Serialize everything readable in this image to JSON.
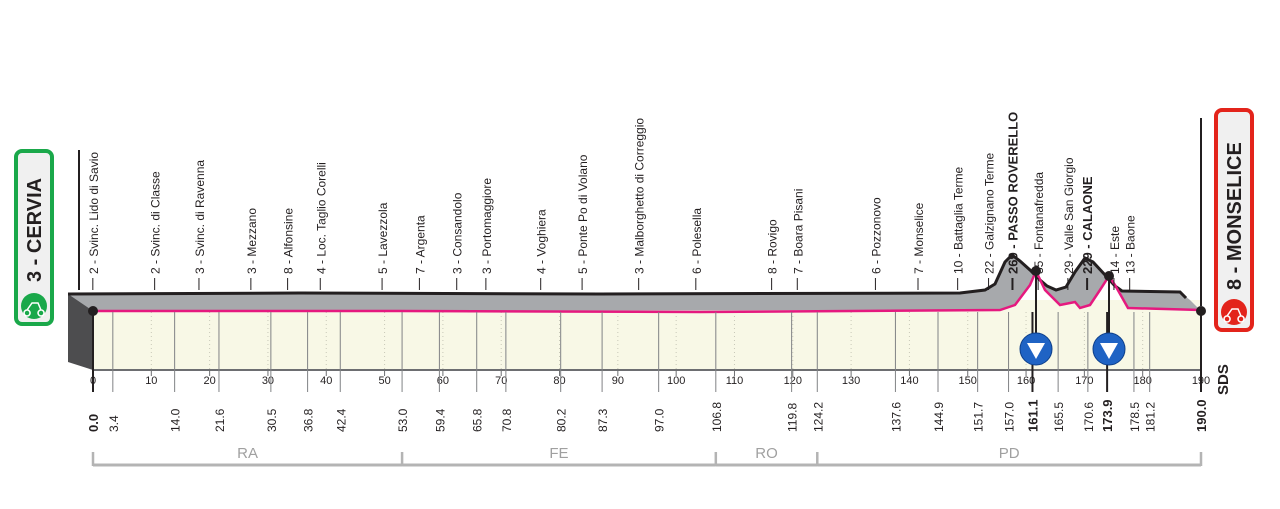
{
  "start": {
    "label": "3 - CERVIA",
    "km": "0.0",
    "color": "#1aa84a"
  },
  "finish": {
    "label": "8 - MONSELICE",
    "km": "190.0",
    "color": "#e3241b"
  },
  "waypoints": [
    {
      "label": "2 - Svinc. Lido di Savio",
      "km": "3.4"
    },
    {
      "label": "2 - Svinc. di Classe",
      "km": "14.0"
    },
    {
      "label": "3 - Svinc. di Ravenna",
      "km": "21.6"
    },
    {
      "label": "3 - Mezzano",
      "km": "30.5"
    },
    {
      "label": "8 - Alfonsine",
      "km": "36.8"
    },
    {
      "label": "4 - Loc. Taglio Corelli",
      "km": "42.4"
    },
    {
      "label": "5 - Lavezzola",
      "km": "53.0"
    },
    {
      "label": "7 - Argenta",
      "km": "59.4"
    },
    {
      "label": "3 - Consandolo",
      "km": "65.8"
    },
    {
      "label": "3 - Portomaggiore",
      "km": "70.8"
    },
    {
      "label": "4 - Voghiera",
      "km": "80.2"
    },
    {
      "label": "5 - Ponte Po di Volano",
      "km": "87.3"
    },
    {
      "label": "3 - Malborghetto di Correggio",
      "km": "97.0"
    },
    {
      "label": "6 - Polesella",
      "km": "106.8"
    },
    {
      "label": "8 - Rovigo",
      "km": "119.8"
    },
    {
      "label": "7 - Boara Pisani",
      "km": "124.2"
    },
    {
      "label": "6 - Pozzonovo",
      "km": "137.6"
    },
    {
      "label": "7 - Monselice",
      "km": "144.9"
    },
    {
      "label": "10 - Battaglia Terme",
      "km": "151.7"
    },
    {
      "label": "22 - Galzignano Terme",
      "km": "157.0"
    },
    {
      "label": "269 - PASSO ROVERELLO",
      "km": "161.1",
      "bold": true
    },
    {
      "label": "35 - Fontanafredda",
      "km": "165.5"
    },
    {
      "label": "29 - Valle San Giorgio",
      "km": "170.6"
    },
    {
      "label": "229 - CALAONE",
      "km": "173.9",
      "bold": true
    },
    {
      "label": "14 - Este",
      "km": "178.5"
    },
    {
      "label": "13 - Baone",
      "km": "181.2"
    }
  ],
  "km_ticks": [
    "0",
    "10",
    "20",
    "30",
    "40",
    "50",
    "60",
    "70",
    "80",
    "90",
    "100",
    "110",
    "120",
    "130",
    "140",
    "150",
    "160",
    "170",
    "180",
    "190"
  ],
  "provinces": [
    {
      "label": "RA",
      "from": 0,
      "to": 53.0
    },
    {
      "label": "FE",
      "from": 53.0,
      "to": 106.8
    },
    {
      "label": "RO",
      "from": 106.8,
      "to": 124.2
    },
    {
      "label": "PD",
      "from": 124.2,
      "to": 190.0
    }
  ],
  "logo": "SDS",
  "colors": {
    "route": "#e5197f",
    "profile": "#a7a9ac",
    "ground": "#f8f8e6",
    "kom": "#1f63c4"
  }
}
